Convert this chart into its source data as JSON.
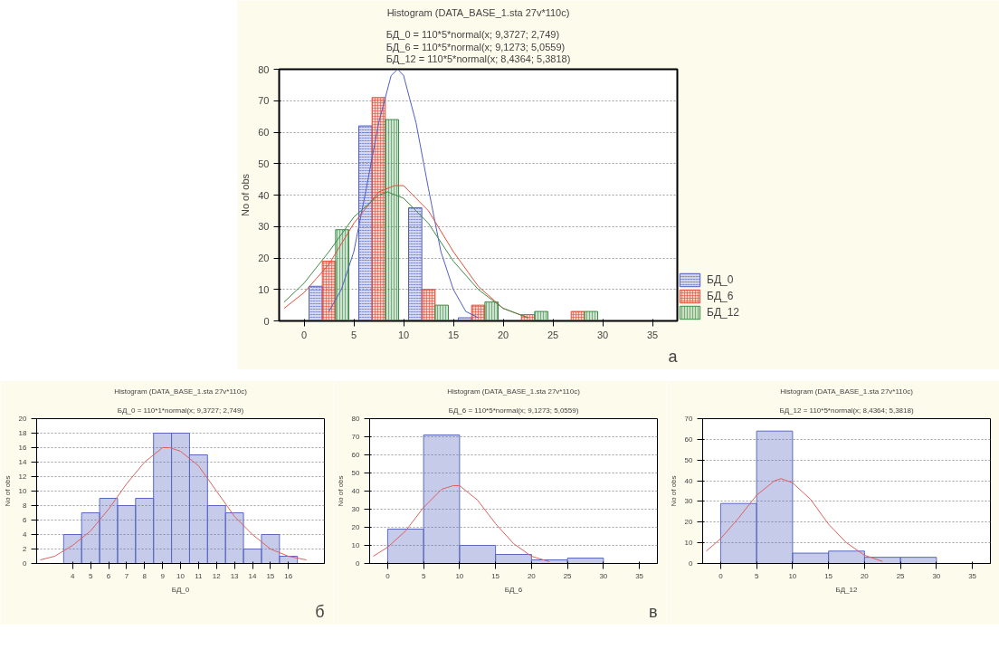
{
  "chart_data": [
    {
      "type": "histogram",
      "title": "Histogram (DATA_BASE_1.sta 27v*110c)",
      "subtitle": "БД_0 = 110*5*normal(x; 9,3727; 2,749)\nБД_6 = 110*5*normal(x; 9,1273; 5,0559)\nБД_12 = 110*5*normal(x; 8,4364; 5,3818)",
      "ylabel": "No of obs",
      "bins": [
        0,
        5,
        10,
        15,
        20,
        25,
        30,
        35
      ],
      "series": [
        {
          "name": "БД_0",
          "color": "#4f5fc4",
          "values": [
            11,
            62,
            36,
            1,
            0,
            0,
            0
          ]
        },
        {
          "name": "БД_6",
          "color": "#e0503c",
          "values": [
            19,
            71,
            10,
            5,
            2,
            3,
            0
          ]
        },
        {
          "name": "БД_12",
          "color": "#3c8c46",
          "values": [
            29,
            64,
            5,
            6,
            3,
            3,
            0
          ]
        },
        {
          "type": "line",
          "color": "#4f5fc4",
          "x": [
            2.5,
            3.75,
            5,
            6.25,
            7.5,
            8.75,
            9.4,
            10,
            11.25,
            12.5,
            13.75,
            15,
            16.25,
            17.5
          ],
          "values": [
            3,
            10,
            22,
            42,
            63,
            78,
            80,
            78,
            63,
            42,
            22,
            10,
            3,
            1
          ]
        },
        {
          "type": "line",
          "color": "#e0503c",
          "x": [
            -2,
            0,
            2.5,
            5,
            7.5,
            9.1,
            10,
            12.5,
            15,
            17.5,
            20,
            22.5
          ],
          "values": [
            4,
            9,
            18,
            31,
            41,
            43,
            43,
            35,
            22,
            11,
            4,
            1
          ]
        },
        {
          "type": "line",
          "color": "#3c8c46",
          "x": [
            -2,
            0,
            2.5,
            5,
            7.5,
            8.4,
            10,
            12.5,
            15,
            17.5,
            20,
            22.5
          ],
          "values": [
            6,
            12,
            22,
            33,
            40,
            41,
            39,
            31,
            19,
            10,
            4,
            1
          ]
        }
      ],
      "xlim": [
        -2.5,
        37.5
      ],
      "xticks": [
        0,
        5,
        10,
        15,
        20,
        25,
        30,
        35
      ],
      "ylim": [
        0,
        80
      ],
      "yticks": [
        0,
        10,
        20,
        30,
        40,
        50,
        60,
        70,
        80
      ],
      "grid": "y",
      "legend": "bottom right",
      "annotations": [
        "а"
      ]
    },
    {
      "type": "histogram",
      "title": "Histogram (DATA_BASE_1.sta 27v*110c)",
      "subtitle": "БД_0 = 110*1*normal(x; 9,3727; 2,749)",
      "xlabel": "БД_0",
      "ylabel": "No of obs",
      "bins": [
        3.5,
        4.5,
        5.5,
        6.5,
        7.5,
        8.5,
        9.5,
        10.5,
        11.5,
        12.5,
        13.5,
        14.5,
        15.5,
        16.5
      ],
      "series": [
        {
          "color": "#5a6ac0",
          "values": [
            4,
            7,
            9,
            8,
            9,
            18,
            18,
            15,
            8,
            7,
            2,
            4,
            1
          ]
        },
        {
          "type": "line",
          "color": "#e06060",
          "x": [
            2.2,
            3,
            4,
            5,
            6,
            7,
            8,
            9,
            9.4,
            10,
            11,
            12,
            13,
            14,
            15,
            16,
            17
          ],
          "values": [
            0.5,
            1,
            2.5,
            4.5,
            7.5,
            11,
            14,
            16,
            16,
            15.5,
            13.5,
            10,
            6.5,
            4,
            2,
            1,
            0.5
          ]
        }
      ],
      "xlim": [
        2,
        18
      ],
      "xticks": [
        4,
        5,
        6,
        7,
        8,
        9,
        10,
        11,
        12,
        13,
        14,
        15,
        16
      ],
      "ylim": [
        0,
        20
      ],
      "yticks": [
        0,
        2,
        4,
        6,
        8,
        10,
        12,
        14,
        16,
        18,
        20
      ],
      "grid": "y",
      "annotations": [
        "б"
      ]
    },
    {
      "type": "histogram",
      "title": "Histogram (DATA_BASE_1.sta 27v*110c)",
      "subtitle": "БД_6 = 110*5*normal(x; 9,1273; 5,0559)",
      "xlabel": "БД_6",
      "ylabel": "No of obs",
      "bins": [
        0,
        5,
        10,
        15,
        20,
        25,
        30,
        35
      ],
      "series": [
        {
          "color": "#5a6ac0",
          "values": [
            19,
            71,
            10,
            5,
            2,
            3,
            0
          ]
        },
        {
          "type": "line",
          "color": "#e06060",
          "x": [
            -2,
            0,
            2.5,
            5,
            7.5,
            9.1,
            10,
            12.5,
            15,
            17.5,
            20,
            22.5
          ],
          "values": [
            4,
            9,
            18,
            31,
            41,
            43,
            43,
            35,
            22,
            11,
            4,
            1
          ]
        }
      ],
      "xlim": [
        -2.5,
        37.5
      ],
      "xticks": [
        0,
        5,
        10,
        15,
        20,
        25,
        30,
        35
      ],
      "ylim": [
        0,
        80
      ],
      "yticks": [
        0,
        10,
        20,
        30,
        40,
        50,
        60,
        70,
        80
      ],
      "grid": "y",
      "annotations": [
        "в"
      ]
    },
    {
      "type": "histogram",
      "title": "Histogram (DATA_BASE_1.sta 27v*110c)",
      "subtitle": "БД_12 = 110*5*normal(x; 8,4364; 5,3818)",
      "xlabel": "БД_12",
      "ylabel": "No of obs",
      "bins": [
        0,
        5,
        10,
        15,
        20,
        25,
        30,
        35
      ],
      "series": [
        {
          "color": "#5a6ac0",
          "values": [
            29,
            64,
            5,
            6,
            3,
            3,
            0
          ]
        },
        {
          "type": "line",
          "color": "#e06060",
          "x": [
            -2,
            0,
            2.5,
            5,
            7.5,
            8.4,
            10,
            12.5,
            15,
            17.5,
            20,
            22.5
          ],
          "values": [
            6,
            12,
            22,
            33,
            40,
            41,
            39,
            31,
            19,
            10,
            4,
            1
          ]
        }
      ],
      "xlim": [
        -2.5,
        37.5
      ],
      "xticks": [
        0,
        5,
        10,
        15,
        20,
        25,
        30,
        35
      ],
      "ylim": [
        0,
        70
      ],
      "yticks": [
        0,
        10,
        20,
        30,
        40,
        50,
        60,
        70
      ],
      "grid": "y"
    }
  ]
}
